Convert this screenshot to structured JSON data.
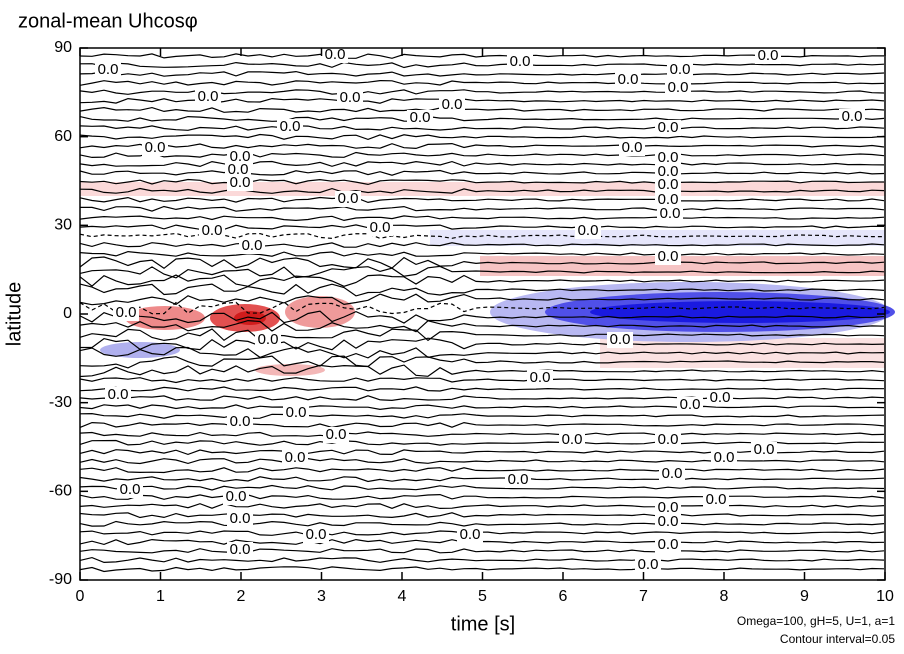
{
  "chart_data": {
    "type": "contour",
    "title": "zonal-mean Uhcosφ",
    "x_label": "time [s]",
    "y_label": "latitude",
    "annotations": [
      "Omega=100, gH=5, U=1, a=1",
      "Contour interval=0.05"
    ],
    "xlim": [
      0,
      10
    ],
    "xticks": [
      0,
      1,
      2,
      3,
      4,
      5,
      6,
      7,
      8,
      9,
      10
    ],
    "ylim": [
      -90,
      90
    ],
    "yticks": [
      90,
      60,
      30,
      0,
      -30,
      -60,
      -90
    ],
    "contour_labels": [
      "0.0",
      "0.0",
      "0.0",
      "0.0",
      "0.0",
      "0.0",
      "0.0",
      "0.0",
      "0.0",
      "0.0",
      "0.0",
      "0.0",
      "0.0",
      "0.0",
      "0.0",
      "0.0",
      "0.0",
      "0.0",
      "0.0",
      "0.0",
      "0.0",
      "0.0",
      "0.0",
      "0.0",
      "0.0",
      "0.0",
      "0.0",
      "0.0",
      "0.0",
      "0.0",
      "0.0",
      "0.0",
      "0.0",
      "0.0",
      "0.0",
      "0.0",
      "0.0",
      "0.0",
      "0.0",
      "0.0",
      "0.0",
      "0.0",
      "0.0",
      "0.0",
      "0.0",
      "0.0",
      "0.0",
      "0.0",
      "0.0",
      "0.0",
      "0.0",
      "0.0",
      "0.0",
      "0.0",
      "0.0",
      "0.0",
      "0.0",
      "0.0"
    ]
  }
}
